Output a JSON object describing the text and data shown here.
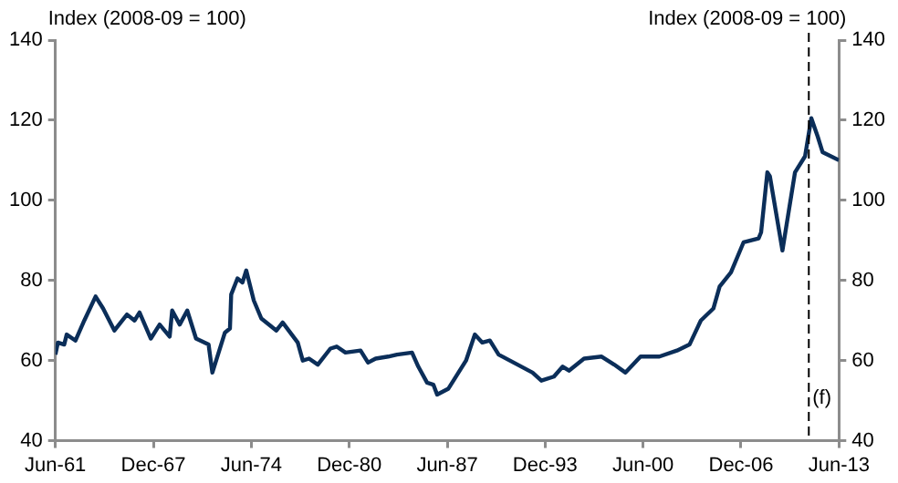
{
  "chart_data": {
    "type": "line",
    "ylabel": "Index (2008-09 = 100)",
    "y2label": "Index (2008-09 = 100)",
    "x": [
      "1961-06",
      "1961-08",
      "1962-01",
      "1962-03",
      "1962-10",
      "1963-05",
      "1964-02",
      "1964-08",
      "1965-05",
      "1966-03",
      "1966-09",
      "1967-01",
      "1967-10",
      "1968-05",
      "1969-01",
      "1969-03",
      "1969-09",
      "1970-03",
      "1970-10",
      "1971-08",
      "1971-11",
      "1972-09",
      "1973-01",
      "1973-02",
      "1973-07",
      "1973-11",
      "1974-02",
      "1974-08",
      "1975-02",
      "1976-02",
      "1976-07",
      "1977-07",
      "1977-11",
      "1978-04",
      "1978-11",
      "1979-09",
      "1980-02",
      "1980-09",
      "1981-09",
      "1982-03",
      "1982-09",
      "1983-07",
      "1984-02",
      "1985-02",
      "1985-07",
      "1986-02",
      "1986-07",
      "1986-10",
      "1987-07",
      "1987-11",
      "1988-09",
      "1989-04",
      "1989-10",
      "1990-04",
      "1990-11",
      "1991-11",
      "1993-02",
      "1993-09",
      "1994-07",
      "1995-02",
      "1995-07",
      "1996-07",
      "1997-09",
      "1998-07",
      "1999-04",
      "2000-04",
      "2001-07",
      "2002-09",
      "2003-07",
      "2004-04",
      "2005-02",
      "2005-07",
      "2006-04",
      "2007-02",
      "2008-02",
      "2008-04",
      "2008-09",
      "2008-11",
      "2009-09",
      "2010-07",
      "2011-03",
      "2011-08",
      "2012-01",
      "2012-05",
      "2013-06"
    ],
    "series": [
      {
        "color": "#0b2e59",
        "values": [
          61.5,
          64.5,
          64,
          66.5,
          65,
          70,
          76,
          73,
          67.5,
          71.5,
          70,
          72,
          65.5,
          69,
          66,
          72.5,
          69,
          72.5,
          65.5,
          64,
          57,
          67,
          68,
          76.5,
          80.5,
          79.5,
          82.5,
          75,
          70.5,
          67.5,
          69.5,
          64.5,
          60,
          60.5,
          59,
          63,
          63.5,
          62,
          62.5,
          59.5,
          60.5,
          61,
          61.5,
          62,
          58.5,
          54.5,
          54,
          51.5,
          53,
          55,
          60,
          66.5,
          64.5,
          65,
          61.5,
          59.5,
          57,
          55,
          56,
          58.5,
          57.5,
          60.5,
          61,
          59,
          57,
          61,
          61,
          62.5,
          64,
          70,
          73,
          78.5,
          82,
          89.5,
          90.5,
          92,
          107,
          106,
          87.5,
          107,
          111,
          120.5,
          116,
          112,
          110
        ]
      }
    ],
    "xlim": [
      "1961-06",
      "2013-06"
    ],
    "xticks": [
      {
        "value": "1961-06",
        "label": "Jun-61"
      },
      {
        "value": "1967-12",
        "label": "Dec-67"
      },
      {
        "value": "1974-06",
        "label": "Jun-74"
      },
      {
        "value": "1980-12",
        "label": "Dec-80"
      },
      {
        "value": "1987-06",
        "label": "Jun-87"
      },
      {
        "value": "1993-12",
        "label": "Dec-93"
      },
      {
        "value": "2000-06",
        "label": "Jun-00"
      },
      {
        "value": "2006-12",
        "label": "Dec-06"
      },
      {
        "value": "2013-06",
        "label": "Jun-13"
      }
    ],
    "ylim": [
      40,
      140
    ],
    "yticks": [
      40,
      60,
      80,
      100,
      120,
      140
    ],
    "y2lim": [
      40,
      140
    ],
    "y2ticks": [
      40,
      60,
      80,
      100,
      120,
      140
    ],
    "ref_lines": [
      {
        "axis": "x",
        "value": "2011-06",
        "label": "(f)",
        "color": "#000000",
        "line_style": "dashed"
      }
    ],
    "line_style": "solid",
    "marker": "none",
    "grid": false,
    "legend": false
  }
}
